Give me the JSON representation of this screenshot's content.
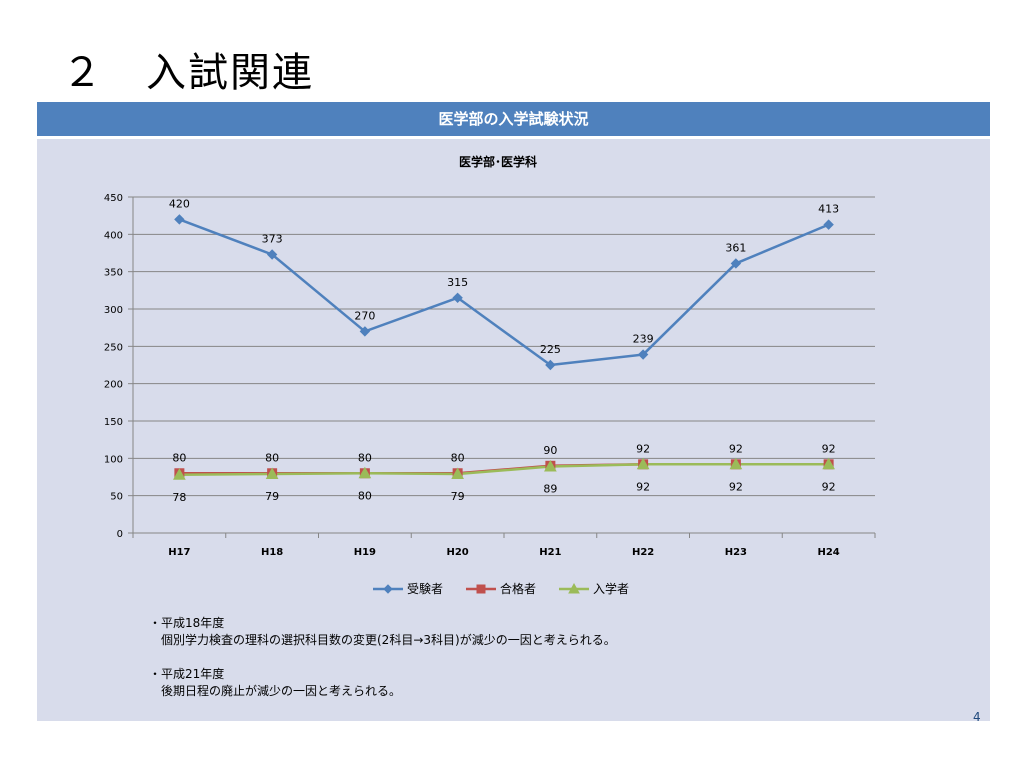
{
  "slide": {
    "title": "２　入試関連",
    "banner": "医学部の入学試験状況",
    "page_number": "4"
  },
  "notes": [
    {
      "head": "・平成18年度",
      "body": "個別学力検査の理科の選択科目数の変更(2科目→3科目)が減少の一因と考えられる。"
    },
    {
      "head": "・平成21年度",
      "body": "後期日程の廃止が減少の一因と考えられる。"
    }
  ],
  "chart_data": {
    "type": "line",
    "title": "医学部･医学科",
    "categories": [
      "H17",
      "H18",
      "H19",
      "H20",
      "H21",
      "H22",
      "H23",
      "H24"
    ],
    "yticks": [
      0,
      50,
      100,
      150,
      200,
      250,
      300,
      350,
      400,
      450
    ],
    "ylim": [
      0,
      450
    ],
    "grid": true,
    "legend_position": "bottom",
    "series": [
      {
        "name": "受験者",
        "values": [
          420,
          373,
          270,
          315,
          225,
          239,
          361,
          413
        ],
        "color": "#4f81bd",
        "marker": "diamond",
        "label_pos": "above"
      },
      {
        "name": "合格者",
        "values": [
          80,
          80,
          80,
          80,
          90,
          92,
          92,
          92
        ],
        "color": "#c0504d",
        "marker": "square",
        "label_pos": "above"
      },
      {
        "name": "入学者",
        "values": [
          78,
          79,
          80,
          79,
          89,
          92,
          92,
          92
        ],
        "color": "#9bbb59",
        "marker": "triangle",
        "label_pos": "below"
      }
    ]
  }
}
